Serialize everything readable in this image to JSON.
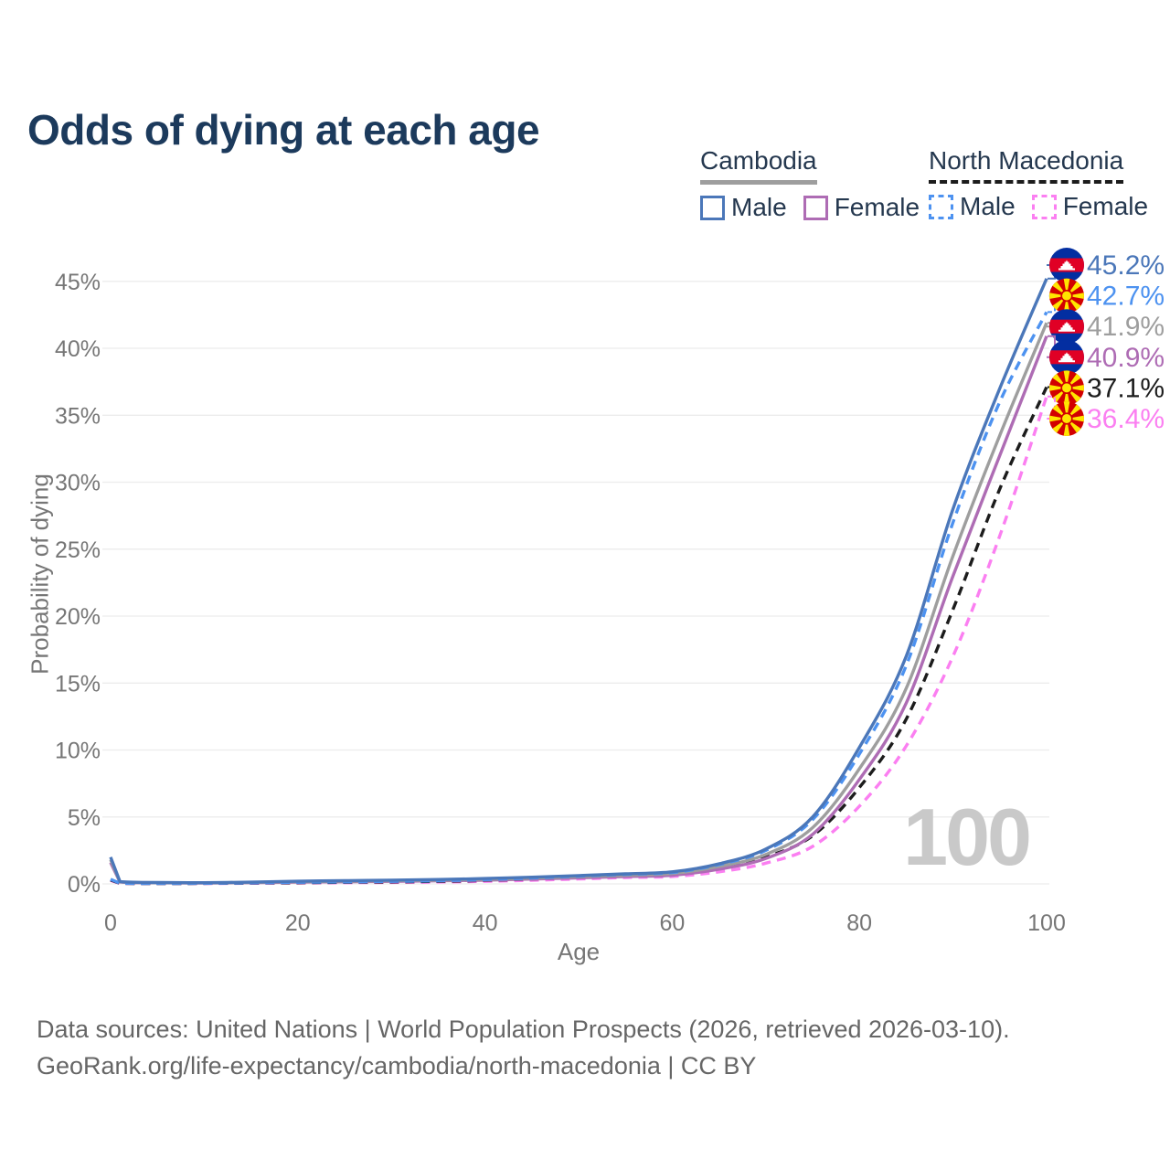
{
  "title": "Odds of dying at each age",
  "legend": {
    "groups": [
      {
        "country": "Cambodia",
        "line_color": "#9e9e9e",
        "line_dashed": false,
        "items": [
          {
            "label": "Male",
            "color": "#4b77b9",
            "dashed": false
          },
          {
            "label": "Female",
            "color": "#ae6cb4",
            "dashed": false
          }
        ]
      },
      {
        "country": "North Macedonia",
        "line_color": "#1c1c1c",
        "line_dashed": true,
        "items": [
          {
            "label": "Male",
            "color": "#4d92f0",
            "dashed": true
          },
          {
            "label": "Female",
            "color": "#fb7ff1",
            "dashed": true
          }
        ]
      }
    ]
  },
  "chart_data": {
    "type": "line",
    "title": "Odds of dying at each age",
    "xlabel": "Age",
    "ylabel": "Probability of dying",
    "xlim": [
      0,
      100
    ],
    "ylim": [
      0,
      45
    ],
    "xticks": [
      0,
      20,
      40,
      60,
      80,
      100
    ],
    "yticks": [
      0,
      5,
      10,
      15,
      20,
      25,
      30,
      35,
      40,
      45
    ],
    "ytick_labels": [
      "0%",
      "5%",
      "10%",
      "15%",
      "20%",
      "25%",
      "30%",
      "35%",
      "40%",
      "45%"
    ],
    "grid": "horizontal",
    "legend_position": "top-right",
    "watermark": "100",
    "x": [
      0,
      1,
      5,
      10,
      15,
      20,
      25,
      30,
      35,
      40,
      45,
      50,
      55,
      60,
      65,
      70,
      75,
      80,
      85,
      90,
      95,
      100
    ],
    "series": [
      {
        "id": "cambodia-male",
        "name": "Cambodia Male",
        "country": "Cambodia",
        "sex": "Male",
        "flag": "kh",
        "color": "#4b77b9",
        "dashed": false,
        "end_label": "45.2%",
        "end_value": 45.2,
        "values": [
          2.0,
          0.18,
          0.1,
          0.09,
          0.13,
          0.2,
          0.24,
          0.28,
          0.33,
          0.4,
          0.5,
          0.62,
          0.75,
          0.9,
          1.5,
          2.6,
          5.0,
          10.2,
          17.0,
          28.0,
          37.0,
          45.2
        ]
      },
      {
        "id": "north-macedonia-male",
        "name": "North Macedonia Male",
        "country": "North Macedonia",
        "sex": "Male",
        "flag": "mk",
        "color": "#4d92f0",
        "dashed": true,
        "end_label": "42.7%",
        "end_value": 42.7,
        "values": [
          0.35,
          0.05,
          0.04,
          0.05,
          0.08,
          0.12,
          0.15,
          0.19,
          0.24,
          0.32,
          0.44,
          0.58,
          0.72,
          0.85,
          1.45,
          2.5,
          4.8,
          9.7,
          16.3,
          27.0,
          36.0,
          42.7
        ]
      },
      {
        "id": "cambodia-overall",
        "name": "Cambodia Overall",
        "country": "Cambodia",
        "sex": "Both",
        "flag": "kh",
        "color": "#9e9e9e",
        "dashed": false,
        "end_label": "41.9%",
        "end_value": 41.9,
        "values": [
          1.8,
          0.16,
          0.09,
          0.08,
          0.11,
          0.17,
          0.2,
          0.24,
          0.28,
          0.34,
          0.43,
          0.54,
          0.65,
          0.78,
          1.3,
          2.2,
          4.2,
          8.6,
          14.6,
          24.5,
          33.5,
          41.9
        ]
      },
      {
        "id": "cambodia-female",
        "name": "Cambodia Female",
        "country": "Cambodia",
        "sex": "Female",
        "flag": "kh",
        "color": "#ae6cb4",
        "dashed": false,
        "end_label": "40.9%",
        "end_value": 40.9,
        "values": [
          1.6,
          0.14,
          0.08,
          0.07,
          0.09,
          0.13,
          0.16,
          0.19,
          0.23,
          0.28,
          0.36,
          0.45,
          0.55,
          0.65,
          1.1,
          1.9,
          3.7,
          7.8,
          13.5,
          23.0,
          32.0,
          40.9
        ]
      },
      {
        "id": "north-macedonia-overall",
        "name": "North Macedonia Overall",
        "country": "North Macedonia",
        "sex": "Both",
        "flag": "mk",
        "color": "#1c1c1c",
        "dashed": true,
        "end_label": "37.1%",
        "end_value": 37.1,
        "values": [
          0.3,
          0.05,
          0.03,
          0.04,
          0.06,
          0.09,
          0.12,
          0.15,
          0.19,
          0.26,
          0.36,
          0.48,
          0.6,
          0.7,
          1.15,
          2.0,
          3.6,
          7.2,
          12.3,
          20.5,
          29.5,
          37.1
        ]
      },
      {
        "id": "north-macedonia-female",
        "name": "North Macedonia Female",
        "country": "North Macedonia",
        "sex": "Female",
        "flag": "mk",
        "color": "#fb7ff1",
        "dashed": true,
        "end_label": "36.4%",
        "end_value": 36.4,
        "values": [
          0.25,
          0.04,
          0.03,
          0.03,
          0.05,
          0.07,
          0.09,
          0.11,
          0.14,
          0.19,
          0.27,
          0.37,
          0.48,
          0.55,
          0.9,
          1.55,
          2.8,
          5.8,
          10.3,
          17.0,
          26.0,
          36.4
        ]
      }
    ]
  },
  "footer": {
    "line1": "Data sources: United Nations | World Population Prospects (2026, retrieved 2026-03-10).",
    "line2": "GeoRank.org/life-expectancy/cambodia/north-macedonia | CC BY"
  }
}
